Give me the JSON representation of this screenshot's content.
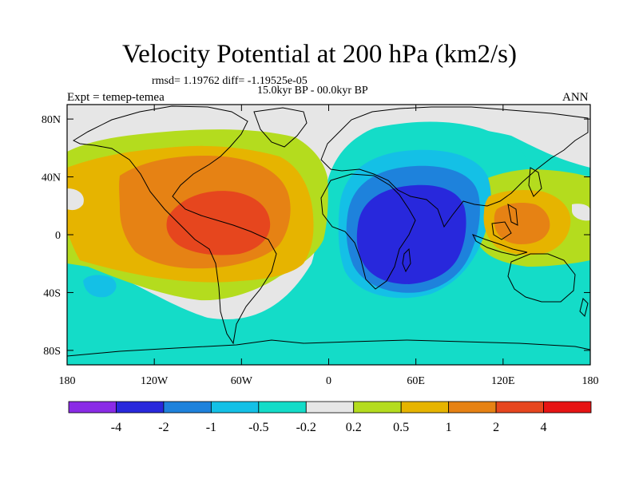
{
  "header": {
    "title": "Velocity Potential at 200 hPa (km2/s)",
    "stats": "rmsd= 1.19762 diff= -1.19525e-05",
    "period": "15.0kyr BP - 00.0kyr BP",
    "experiment": "Expt = temep-temea",
    "season": "ANN"
  },
  "chart_data": {
    "type": "heatmap",
    "projection": "cylindrical-equidistant",
    "title": "Velocity Potential at 200 hPa (km2/s)",
    "units": "km2/s",
    "x_axis": {
      "lim": [
        -180,
        180
      ],
      "ticks": [
        -180,
        -120,
        -60,
        0,
        60,
        120,
        180
      ],
      "tick_labels": [
        "180",
        "120W",
        "60W",
        "0",
        "60E",
        "120E",
        "180"
      ]
    },
    "y_axis": {
      "lim": [
        -90,
        90
      ],
      "ticks": [
        80,
        40,
        0,
        -40,
        -80
      ],
      "tick_labels": [
        "80N",
        "40N",
        "0",
        "40S",
        "80S"
      ]
    },
    "contour_levels": [
      -4,
      -2,
      -1,
      -0.5,
      -0.2,
      0.2,
      0.5,
      1,
      2,
      4
    ],
    "colorbar_labels": [
      "-4",
      "-2",
      "-1",
      "-0.5",
      "-0.2",
      "0.2",
      "0.5",
      "1",
      "2",
      "4"
    ],
    "colors": [
      "#8a2be6",
      "#2828dc",
      "#1e82dc",
      "#14c0e6",
      "#14dcc8",
      "#e6e6e6",
      "#b4dc1e",
      "#e6b400",
      "#e68214",
      "#e6461e",
      "#e61414"
    ],
    "centers": [
      {
        "name": "Americas positive anomaly",
        "lon": -90,
        "lat": 5,
        "approx_max": 3.2
      },
      {
        "name": "Western Pacific positive anomaly",
        "lon": 130,
        "lat": 5,
        "approx_max": 1.5
      },
      {
        "name": "Indian Ocean negative anomaly",
        "lon": 50,
        "lat": 5,
        "approx_min": -2.8
      }
    ]
  }
}
